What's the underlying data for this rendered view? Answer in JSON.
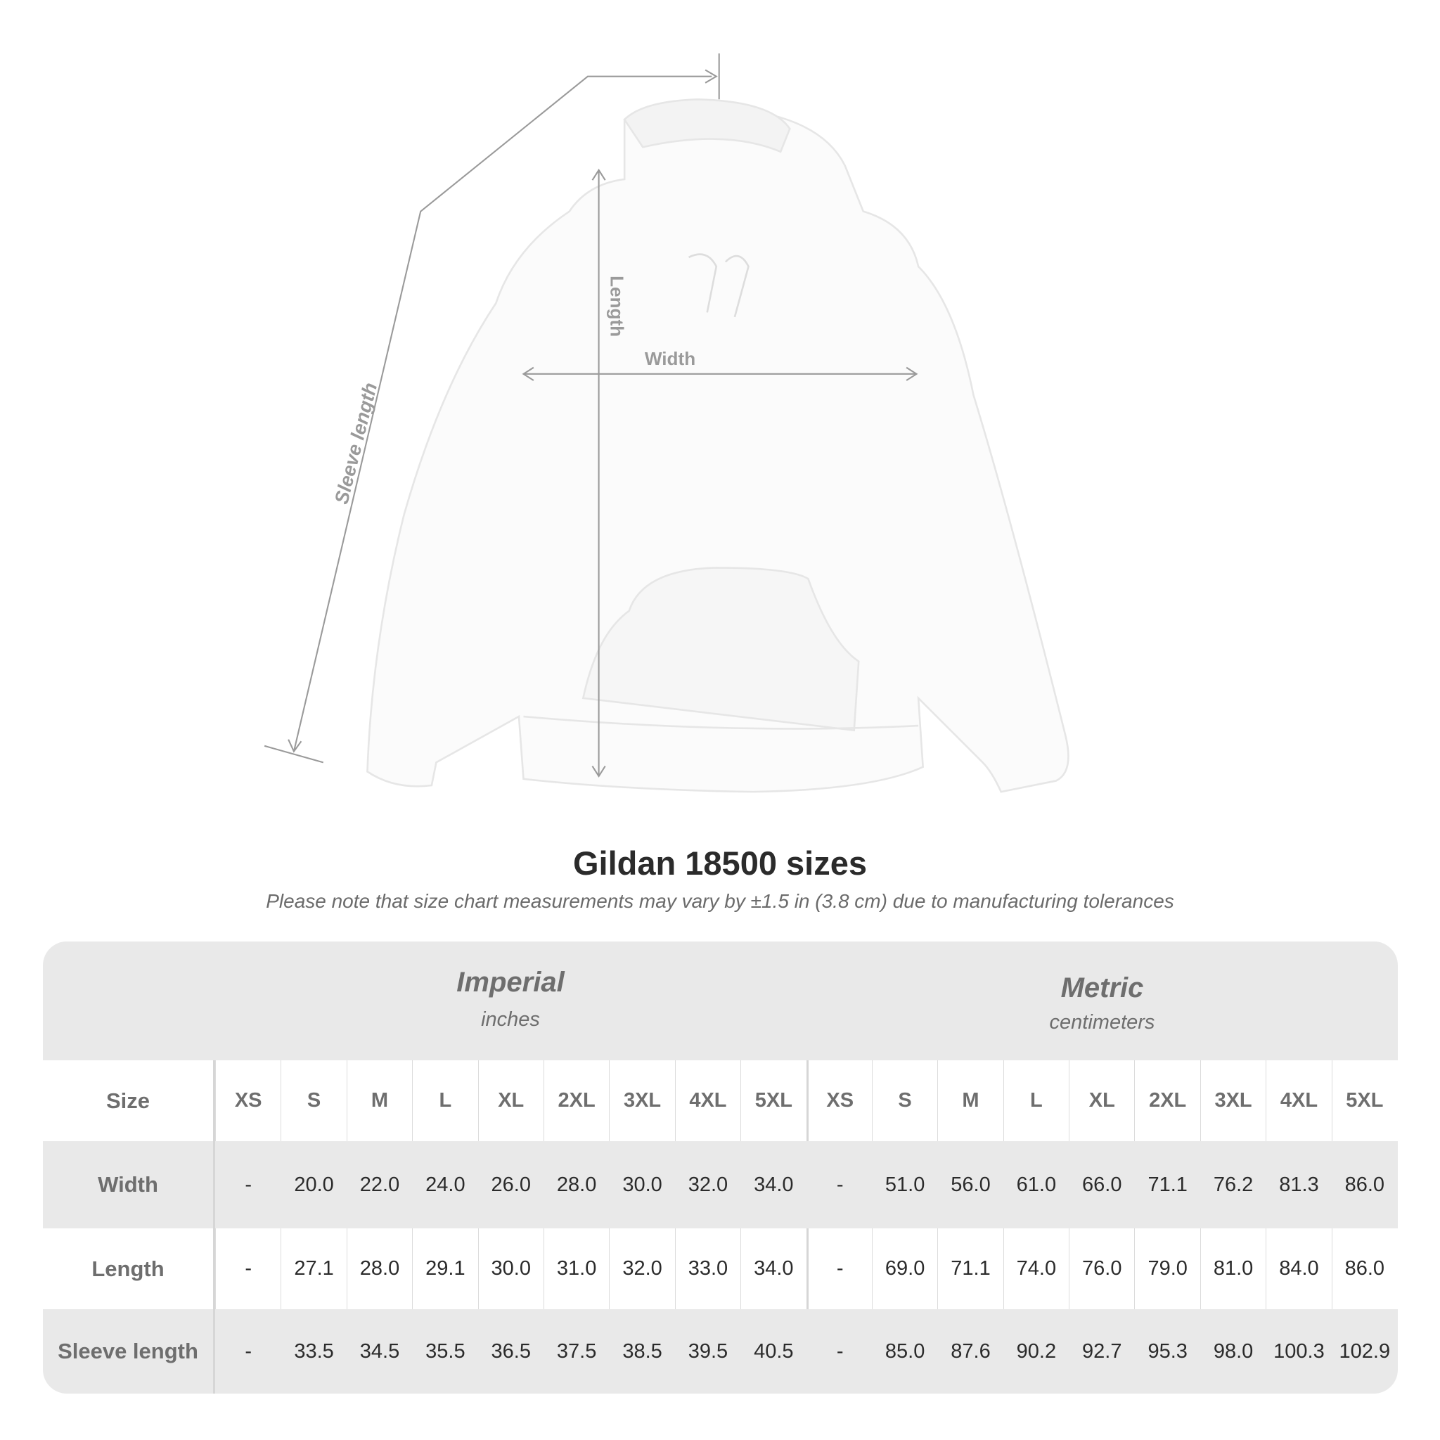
{
  "diagram": {
    "labels": {
      "sleeve": "Sleeve length",
      "length": "Length",
      "width": "Width"
    },
    "line_color": "#9a9a9a"
  },
  "title": "Gildan 18500 sizes",
  "subtitle": "Please note that size chart measurements may vary by ±1.5 in (3.8 cm) due to manufacturing tolerances",
  "table": {
    "imperial": {
      "title": "Imperial",
      "unit": "inches"
    },
    "metric": {
      "title": "Metric",
      "unit": "centimeters"
    },
    "size_label": "Size",
    "sizes": [
      "XS",
      "S",
      "M",
      "L",
      "XL",
      "2XL",
      "3XL",
      "4XL",
      "5XL"
    ],
    "rows": [
      {
        "label": "Width",
        "imperial": [
          "-",
          "20.0",
          "22.0",
          "24.0",
          "26.0",
          "28.0",
          "30.0",
          "32.0",
          "34.0"
        ],
        "metric": [
          "-",
          "51.0",
          "56.0",
          "61.0",
          "66.0",
          "71.1",
          "76.2",
          "81.3",
          "86.0"
        ]
      },
      {
        "label": "Length",
        "imperial": [
          "-",
          "27.1",
          "28.0",
          "29.1",
          "30.0",
          "31.0",
          "32.0",
          "33.0",
          "34.0"
        ],
        "metric": [
          "-",
          "69.0",
          "71.1",
          "74.0",
          "76.0",
          "79.0",
          "81.0",
          "84.0",
          "86.0"
        ]
      },
      {
        "label": "Sleeve length",
        "imperial": [
          "-",
          "33.5",
          "34.5",
          "35.5",
          "36.5",
          "37.5",
          "38.5",
          "39.5",
          "40.5"
        ],
        "metric": [
          "-",
          "85.0",
          "87.6",
          "90.2",
          "92.7",
          "95.3",
          "98.0",
          "100.3",
          "102.9"
        ]
      }
    ]
  }
}
